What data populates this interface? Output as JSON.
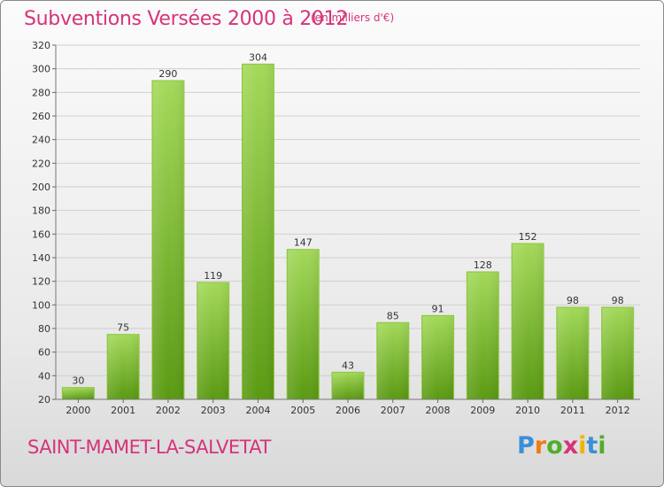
{
  "title": "Subventions Versées 2000 à 2012",
  "subtitle": "(en milliers d'€)",
  "commune": "SAINT-MAMET-LA-SALVETAT",
  "brand": "Proxiti",
  "colors": {
    "accent": "#d6337a",
    "bar_top": "#9fd552",
    "bar_bottom": "#5a9a12",
    "grid": "#c8c8c8"
  },
  "chart_data": {
    "type": "bar",
    "title": "Subventions Versées 2000 à 2012",
    "subtitle": "(en milliers d'€)",
    "xlabel": "",
    "ylabel": "",
    "ylim": [
      20,
      320
    ],
    "yticks": [
      20,
      40,
      60,
      80,
      100,
      120,
      140,
      160,
      180,
      200,
      220,
      240,
      260,
      280,
      300,
      320
    ],
    "grid": true,
    "categories": [
      "2000",
      "2001",
      "2002",
      "2003",
      "2004",
      "2005",
      "2006",
      "2007",
      "2008",
      "2009",
      "2010",
      "2011",
      "2012"
    ],
    "values": [
      30,
      75,
      290,
      119,
      304,
      147,
      43,
      85,
      91,
      128,
      152,
      98,
      98
    ]
  }
}
